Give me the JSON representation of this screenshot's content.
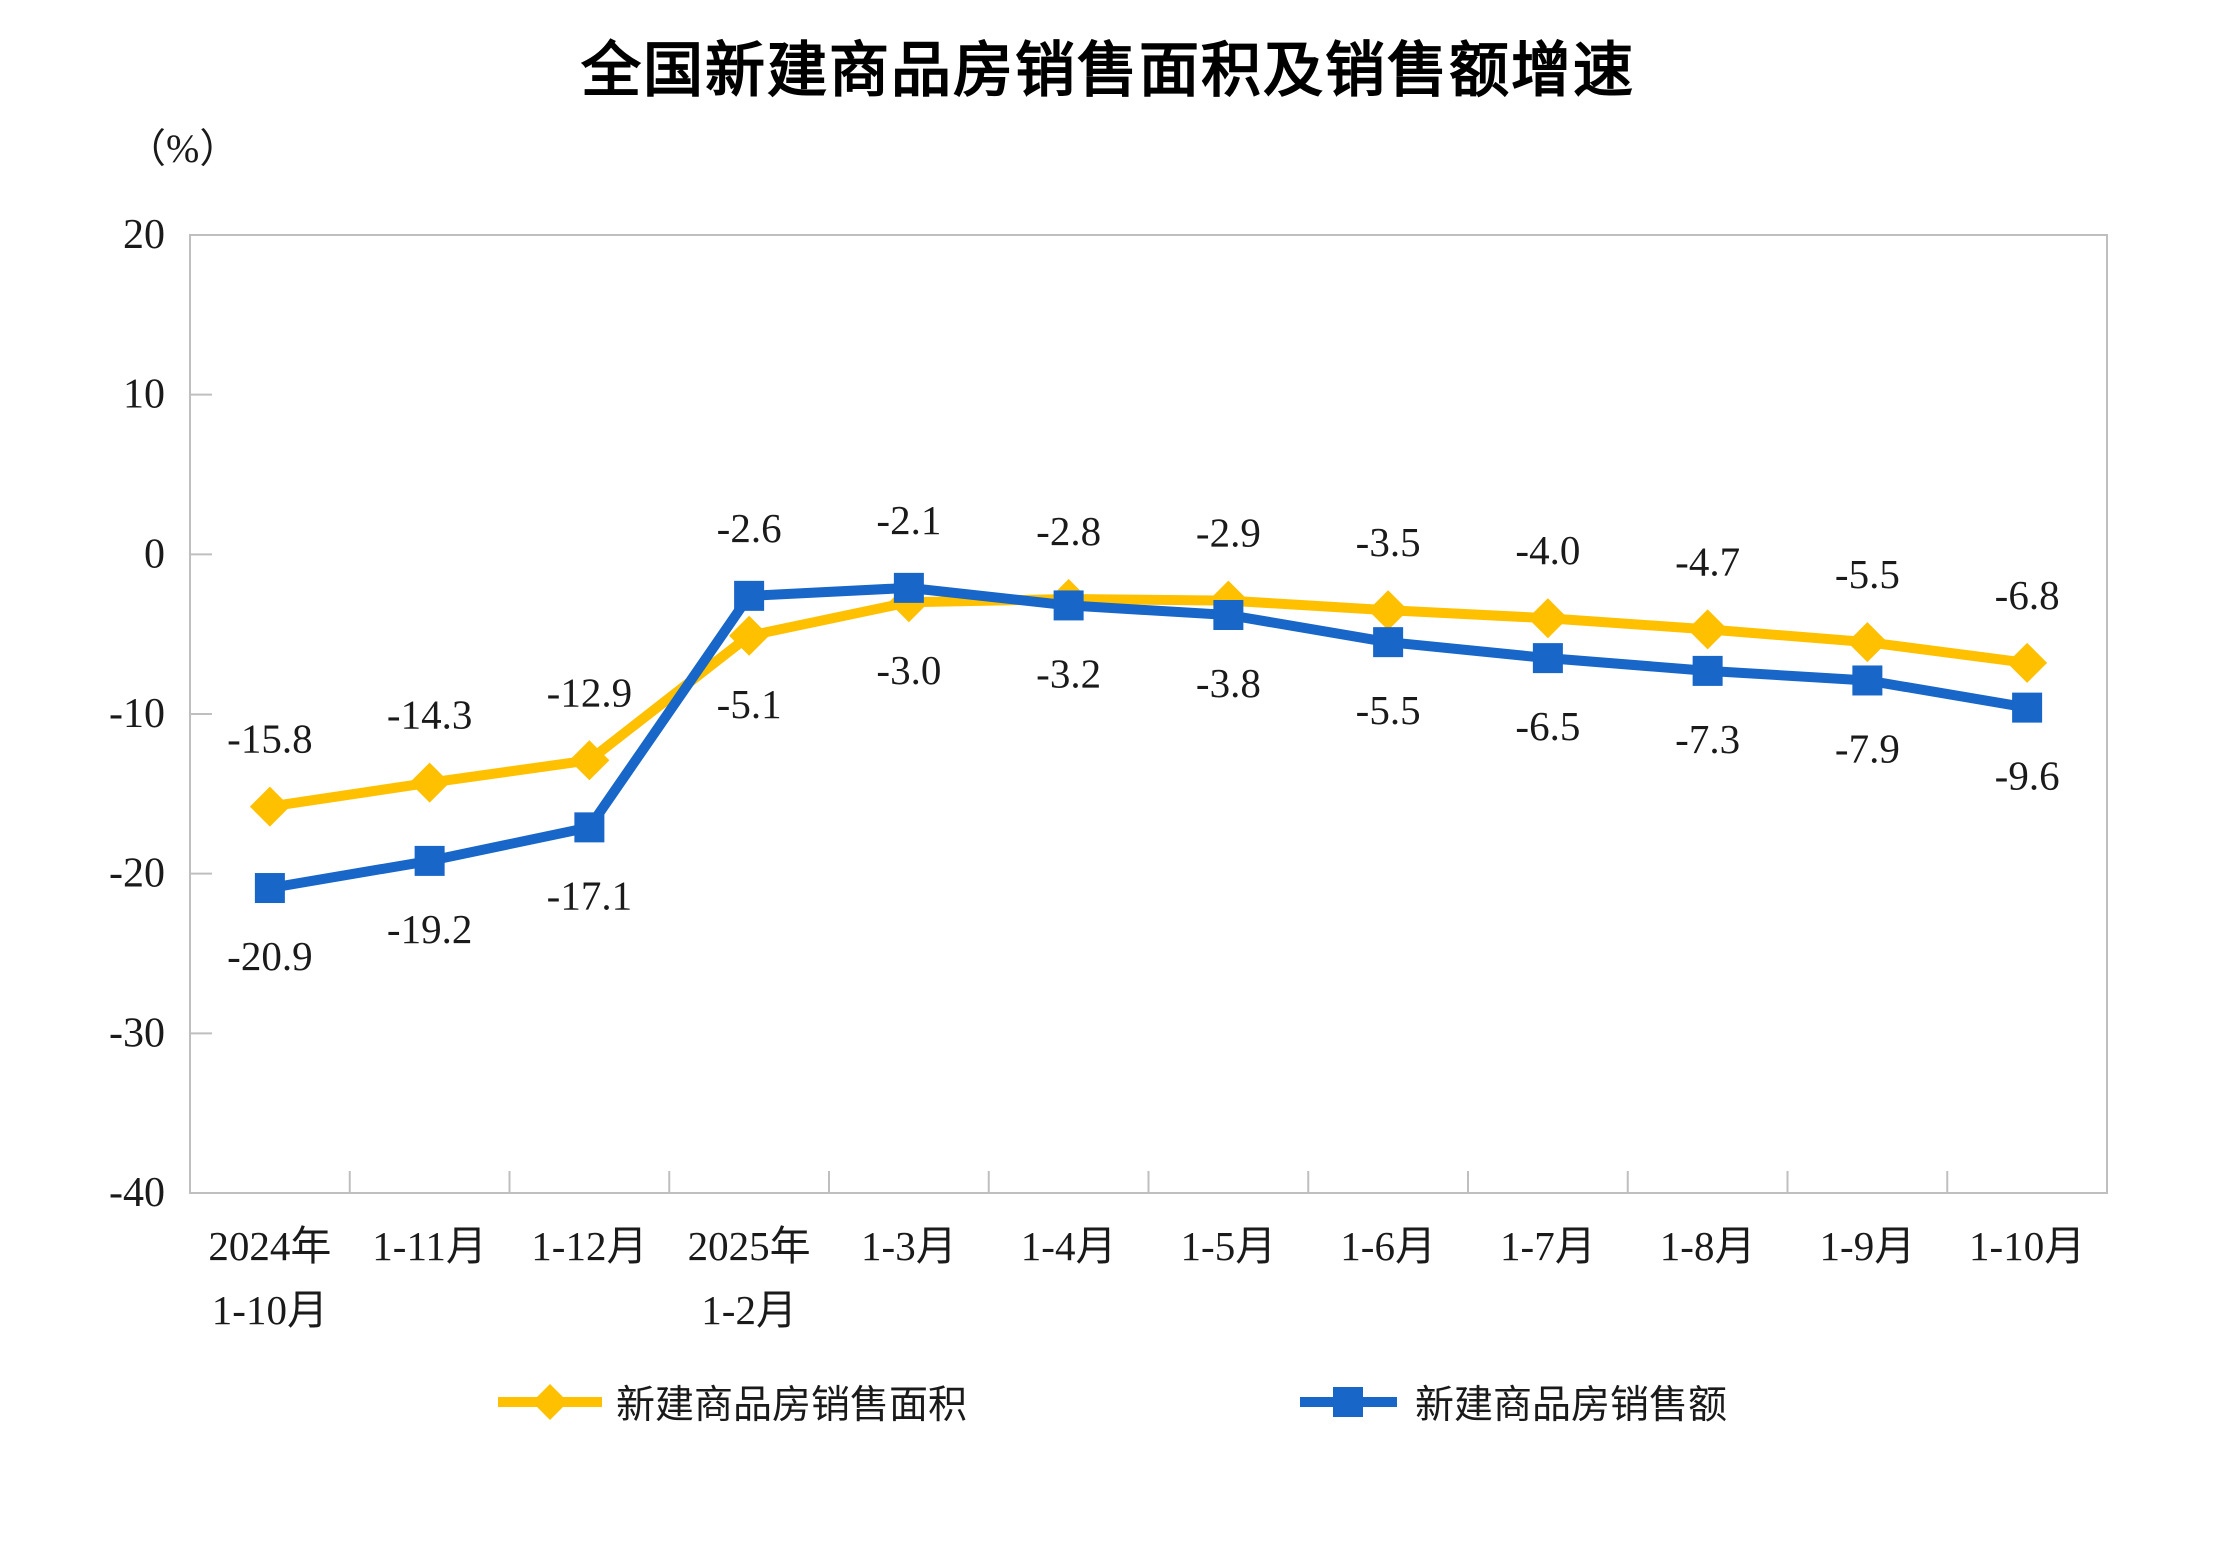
{
  "chart_data": {
    "type": "line",
    "title": "全国新建商品房销售面积及销售额增速",
    "ylabel": "（%）",
    "xlabel": "",
    "ylim": [
      -40,
      20
    ],
    "yticks": [
      20,
      10,
      0,
      -10,
      -20,
      -30,
      -40
    ],
    "grid": false,
    "legend_position": "bottom",
    "categories": [
      "2024年\n1-10月",
      "1-11月",
      "1-12月",
      "2025年\n1-2月",
      "1-3月",
      "1-4月",
      "1-5月",
      "1-6月",
      "1-7月",
      "1-8月",
      "1-9月",
      "1-10月"
    ],
    "series": [
      {
        "name": "新建商品房销售面积",
        "color": "#FFC000",
        "marker": "diamond",
        "values": [
          -15.8,
          -14.3,
          -12.9,
          -5.1,
          -3.0,
          -2.8,
          -2.9,
          -3.5,
          -4.0,
          -4.7,
          -5.5,
          -6.8
        ]
      },
      {
        "name": "新建商品房销售额",
        "color": "#1766C8",
        "marker": "square",
        "values": [
          -20.9,
          -19.2,
          -17.1,
          -2.6,
          -2.1,
          -3.2,
          -3.8,
          -5.5,
          -6.5,
          -7.3,
          -7.9,
          -9.6
        ]
      }
    ]
  }
}
